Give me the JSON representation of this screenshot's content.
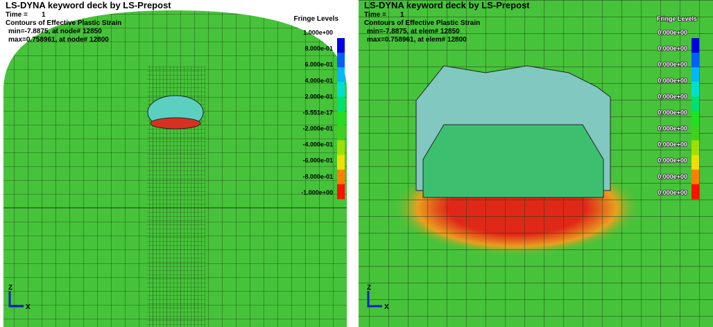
{
  "panels": [
    {
      "title": "LS-DYNA keyword deck by LS-Prepost",
      "time_label": "Time =",
      "time_value": "1",
      "contour": "Contours of Effective Plastic Strain",
      "min": "min=-7.8875, at node# 12850",
      "max": "max=0.758961, at node# 12800",
      "fringe_title": "Fringe Levels",
      "fringe_levels": [
        "1.000e+00",
        "8.000e-01",
        "6.000e-01",
        "4.000e-01",
        "2.000e-01",
        "-5.551e-17",
        "-2.000e-01",
        "-4.000e-01",
        "-6.000e-01",
        "-8.000e-01",
        "-1.000e+00"
      ],
      "axis_z": "Z",
      "axis_x": "X"
    },
    {
      "title": "LS-DYNA keyword deck by LS-Prepost",
      "time_label": "Time =",
      "time_value": "1",
      "contour": "Contours of Effective Plastic Strain",
      "min": "min=-7.8875, at elem# 12850",
      "max": "max=0.758961, at elem# 12800",
      "fringe_title": "Fringe Levels",
      "fringe_levels": [
        "0.000e+00",
        "0.000e+00",
        "0.000e+00",
        "0.000e+00",
        "0.000e+00",
        "0.000e+00",
        "0.000e+00",
        "0.000e+00",
        "0.000e+00",
        "0.000e+00",
        "0.000e+00"
      ],
      "axis_z": "Z",
      "axis_x": "X"
    }
  ]
}
